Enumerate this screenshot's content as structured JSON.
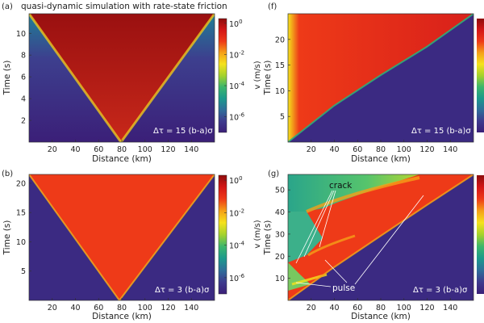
{
  "figure": {
    "title": "quasi-dynamic simulation with rate-state friction"
  },
  "colorbar": {
    "label": "v (m/s)",
    "ticks": [
      {
        "base": "10",
        "exp": "0",
        "value": 1
      },
      {
        "base": "10",
        "exp": "-2",
        "value": 0.01
      },
      {
        "base": "10",
        "exp": "-4",
        "value": 0.0001
      },
      {
        "base": "10",
        "exp": "-6",
        "value": 1e-06
      }
    ],
    "scale": "log",
    "colormap": [
      "#3b1f78",
      "#3e3b8e",
      "#2f6f9a",
      "#1c9a8c",
      "#3cb66c",
      "#a5d22c",
      "#f5e21c",
      "#f5a018",
      "#ee3a18",
      "#d41616",
      "#8e0c0c"
    ]
  },
  "chart_data": [
    {
      "panel": "(a)",
      "type": "heatmap",
      "xlabel": "Distance (km)",
      "ylabel": "Time (s)",
      "xticks": [
        20,
        40,
        60,
        80,
        100,
        120,
        140
      ],
      "yticks": [
        2,
        4,
        6,
        8,
        10
      ],
      "xlim": [
        0,
        160
      ],
      "ylim": [
        0,
        11.8
      ],
      "annotation": "Δτ = 15 (b-a)σ",
      "rupture_front": {
        "nucleation_x": 80,
        "left_edge": [
          [
            80,
            0
          ],
          [
            0,
            11.8
          ]
        ],
        "right_edge": [
          [
            80,
            0
          ],
          [
            160,
            11.8
          ]
        ]
      },
      "inside_velocity": "10^0",
      "outside_velocity": "10^-6",
      "inside_color": "#bf1a1a",
      "outside_color": "#3b1f78"
    },
    {
      "panel": "(b)",
      "type": "heatmap",
      "xlabel": "Distance (km)",
      "ylabel": "Time (s)",
      "xticks": [
        20,
        40,
        60,
        80,
        100,
        120,
        140
      ],
      "yticks": [
        5,
        10,
        15,
        20
      ],
      "xlim": [
        0,
        160
      ],
      "ylim": [
        0,
        21.5
      ],
      "annotation": "Δτ = 3 (b-a)σ",
      "rupture_front": {
        "nucleation_x": 78,
        "left_edge": [
          [
            78,
            0
          ],
          [
            0,
            21.5
          ]
        ],
        "right_edge": [
          [
            78,
            0
          ],
          [
            160,
            21.5
          ]
        ]
      },
      "inside_velocity": "10^-1",
      "outside_velocity": "10^-6",
      "inside_color": "#ee3a18",
      "outside_color": "#3b1f78"
    },
    {
      "panel": "(f)",
      "type": "heatmap",
      "xlabel": "Distance (km)",
      "ylabel": "Time (s)",
      "xticks": [
        20,
        40,
        60,
        80,
        100,
        120,
        140
      ],
      "yticks": [
        5,
        10,
        15,
        20
      ],
      "xlim": [
        0,
        160
      ],
      "ylim": [
        0,
        25
      ],
      "annotation": "Δτ = 15 (b-a)σ",
      "rupture_front": {
        "nucleation_x": 0,
        "right_edge": [
          [
            0,
            0
          ],
          [
            40,
            7
          ],
          [
            80,
            13
          ],
          [
            120,
            18.5
          ],
          [
            160,
            25
          ]
        ]
      },
      "inside_velocity": "10^-1",
      "outside_velocity": "10^-6",
      "inside_color": "#ee3a18",
      "outside_color": "#3b1f78"
    },
    {
      "panel": "(g)",
      "type": "heatmap",
      "xlabel": "Distance (km)",
      "ylabel": "Time (s)",
      "xticks": [
        20,
        40,
        60,
        80,
        100,
        120,
        140
      ],
      "yticks": [
        10,
        20,
        30,
        40,
        50
      ],
      "xlim": [
        0,
        160
      ],
      "ylim": [
        0,
        57
      ],
      "annotation": "Δτ = 3 (b-a)σ",
      "labels": [
        {
          "text": "crack",
          "x": 58,
          "y": 50
        },
        {
          "text": "pulse",
          "x": 48,
          "y": 8
        }
      ],
      "rupture_front": {
        "nucleation_x": 0,
        "right_edge": [
          [
            0,
            0
          ],
          [
            40,
            15
          ],
          [
            80,
            29
          ],
          [
            120,
            43
          ],
          [
            160,
            57
          ]
        ]
      },
      "inside_color": "#ee3a18",
      "outside_color": "#3b1f78",
      "healed_color": "#2fb47c"
    }
  ]
}
